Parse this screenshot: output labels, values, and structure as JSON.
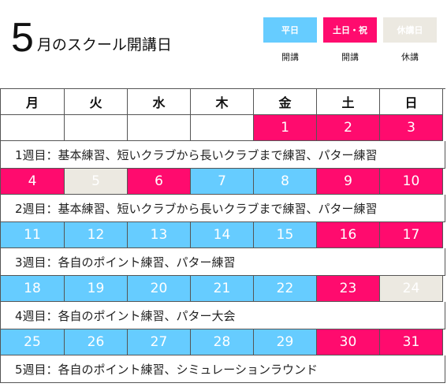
{
  "header": {
    "month": "5",
    "title": "月のスクール開講日"
  },
  "legend": [
    {
      "chip": "平日",
      "caption": "開講",
      "color": "#66ccff"
    },
    {
      "chip": "土日・祝",
      "caption": "開講",
      "color": "#ff0b6e"
    },
    {
      "chip": "休講日",
      "caption": "休講",
      "color": "#ece9e1"
    }
  ],
  "calendar": {
    "weekdays": [
      "月",
      "火",
      "水",
      "木",
      "金",
      "土",
      "日"
    ],
    "weeks": [
      {
        "days": [
          {
            "label": "",
            "type": "blank"
          },
          {
            "label": "",
            "type": "blank"
          },
          {
            "label": "",
            "type": "blank"
          },
          {
            "label": "",
            "type": "blank"
          },
          {
            "label": "1",
            "type": "holiday"
          },
          {
            "label": "2",
            "type": "holiday"
          },
          {
            "label": "3",
            "type": "holiday"
          }
        ],
        "note": "1週目：基本練習、短いクラブから長いクラブまで練習、パター練習"
      },
      {
        "days": [
          {
            "label": "4",
            "type": "holiday"
          },
          {
            "label": "5",
            "type": "closed"
          },
          {
            "label": "6",
            "type": "holiday"
          },
          {
            "label": "7",
            "type": "weekday"
          },
          {
            "label": "8",
            "type": "weekday"
          },
          {
            "label": "9",
            "type": "holiday"
          },
          {
            "label": "10",
            "type": "holiday"
          }
        ],
        "note": "2週目：基本練習、短いクラブから長いクラブまで練習、パター練習"
      },
      {
        "days": [
          {
            "label": "11",
            "type": "weekday"
          },
          {
            "label": "12",
            "type": "weekday"
          },
          {
            "label": "13",
            "type": "weekday"
          },
          {
            "label": "14",
            "type": "weekday"
          },
          {
            "label": "15",
            "type": "weekday"
          },
          {
            "label": "16",
            "type": "holiday"
          },
          {
            "label": "17",
            "type": "holiday"
          }
        ],
        "note": "3週目：各自のポイント練習、パター練習"
      },
      {
        "days": [
          {
            "label": "18",
            "type": "weekday"
          },
          {
            "label": "19",
            "type": "weekday"
          },
          {
            "label": "20",
            "type": "weekday"
          },
          {
            "label": "21",
            "type": "weekday"
          },
          {
            "label": "22",
            "type": "weekday"
          },
          {
            "label": "23",
            "type": "holiday"
          },
          {
            "label": "24",
            "type": "closed"
          }
        ],
        "note": "4週目：各自のポイント練習、パター大会"
      },
      {
        "days": [
          {
            "label": "25",
            "type": "weekday"
          },
          {
            "label": "26",
            "type": "weekday"
          },
          {
            "label": "27",
            "type": "weekday"
          },
          {
            "label": "28",
            "type": "weekday"
          },
          {
            "label": "29",
            "type": "weekday"
          },
          {
            "label": "30",
            "type": "holiday"
          },
          {
            "label": "31",
            "type": "holiday"
          }
        ],
        "note": "5週目：各自のポイント練習、シミュレーションラウンド"
      }
    ]
  }
}
